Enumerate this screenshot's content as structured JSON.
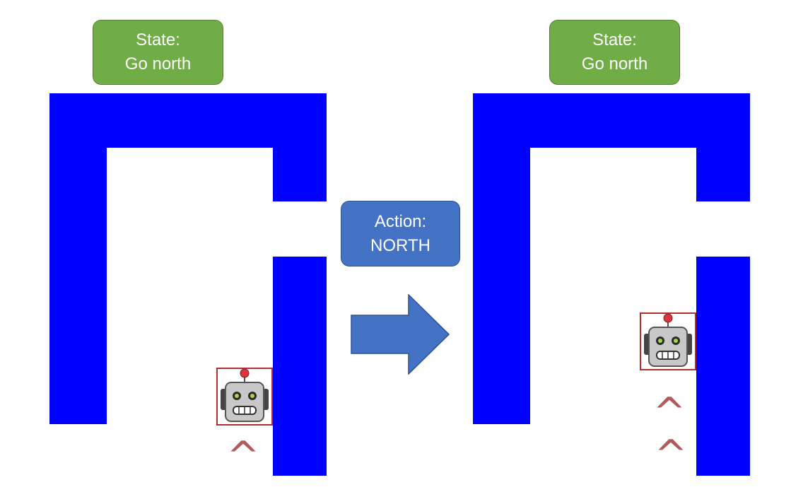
{
  "left_panel": {
    "state_label": "State:",
    "state_value": "Go north",
    "carets": [
      "^"
    ]
  },
  "action": {
    "label": "Action:",
    "value": "NORTH"
  },
  "right_panel": {
    "state_label": "State:",
    "state_value": "Go north",
    "carets": [
      "^",
      "^"
    ]
  },
  "colors": {
    "wall": "#0000ff",
    "state_box": "#70ad47",
    "action_box": "#4472c4",
    "arrow": "#4472c4",
    "caret": "#b05a5a",
    "robot_frame": "#b03030"
  },
  "icons": {
    "robot": "robot-icon",
    "arrow": "right-arrow-icon"
  }
}
